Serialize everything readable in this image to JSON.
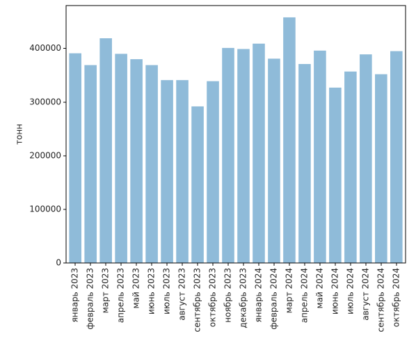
{
  "chart_data": {
    "type": "bar",
    "title": "",
    "xlabel": "",
    "ylabel": "тонн",
    "ylim": [
      0,
      480000
    ],
    "yticks": [
      0,
      100000,
      200000,
      300000,
      400000
    ],
    "ytick_labels": [
      "0",
      "100000",
      "200000",
      "300000",
      "400000"
    ],
    "grid": false,
    "bar_color": "#8fbbd9",
    "categories": [
      "январь 2023",
      "февраль 2023",
      "март 2023",
      "апрель 2023",
      "май 2023",
      "июнь 2023",
      "июль 2023",
      "август 2023",
      "сентябрь 2023",
      "октябрь 2023",
      "ноябрь 2023",
      "декабрь 2023",
      "январь 2024",
      "февраль 2024",
      "март 2024",
      "апрель 2024",
      "май 2024",
      "июнь 2024",
      "июль 2024",
      "август 2024",
      "сентябрь 2024",
      "октябрь 2024"
    ],
    "values": [
      391000,
      369000,
      419000,
      390000,
      380000,
      369000,
      341000,
      341000,
      292000,
      339000,
      401000,
      399000,
      409000,
      381000,
      458000,
      371000,
      396000,
      327000,
      357000,
      389000,
      352000,
      395000
    ]
  }
}
